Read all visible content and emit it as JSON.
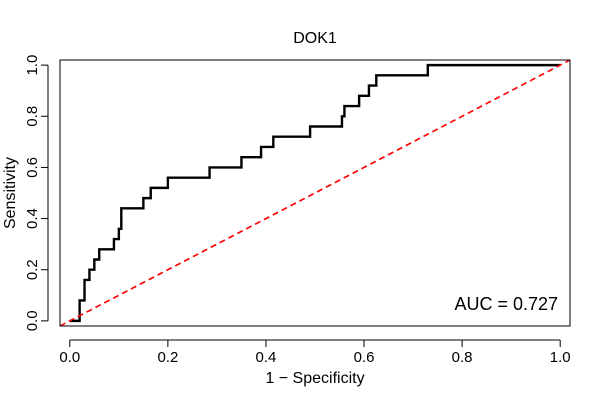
{
  "chart_data": {
    "type": "line",
    "title": "DOK1",
    "xlabel": "1 − Specificity",
    "ylabel": "Sensitivity",
    "xlim": [
      -0.02,
      1.02
    ],
    "ylim": [
      -0.02,
      1.02
    ],
    "x_ticks": [
      0.0,
      0.2,
      0.4,
      0.6,
      0.8,
      1.0
    ],
    "x_tick_labels": [
      "0.0",
      "0.2",
      "0.4",
      "0.6",
      "0.8",
      "1.0"
    ],
    "y_ticks": [
      0.0,
      0.2,
      0.4,
      0.6,
      0.8,
      1.0
    ],
    "y_tick_labels": [
      "0.0",
      "0.2",
      "0.4",
      "0.6",
      "0.8",
      "1.0"
    ],
    "annotation": "AUC = 0.727",
    "annotation_position": "bottom-right",
    "grid": false,
    "series": [
      {
        "color": "#000000",
        "style": "step",
        "points": [
          [
            0.0,
            0.0
          ],
          [
            0.02,
            0.0
          ],
          [
            0.02,
            0.04
          ],
          [
            0.02,
            0.08
          ],
          [
            0.03,
            0.08
          ],
          [
            0.03,
            0.12
          ],
          [
            0.03,
            0.16
          ],
          [
            0.04,
            0.16
          ],
          [
            0.04,
            0.2
          ],
          [
            0.05,
            0.2
          ],
          [
            0.05,
            0.24
          ],
          [
            0.06,
            0.24
          ],
          [
            0.06,
            0.28
          ],
          [
            0.08,
            0.28
          ],
          [
            0.09,
            0.28
          ],
          [
            0.09,
            0.32
          ],
          [
            0.1,
            0.32
          ],
          [
            0.1,
            0.36
          ],
          [
            0.105,
            0.36
          ],
          [
            0.105,
            0.44
          ],
          [
            0.15,
            0.44
          ],
          [
            0.15,
            0.48
          ],
          [
            0.165,
            0.48
          ],
          [
            0.165,
            0.52
          ],
          [
            0.2,
            0.52
          ],
          [
            0.2,
            0.56
          ],
          [
            0.285,
            0.56
          ],
          [
            0.285,
            0.6
          ],
          [
            0.35,
            0.6
          ],
          [
            0.35,
            0.64
          ],
          [
            0.39,
            0.64
          ],
          [
            0.39,
            0.68
          ],
          [
            0.415,
            0.68
          ],
          [
            0.415,
            0.72
          ],
          [
            0.49,
            0.72
          ],
          [
            0.49,
            0.76
          ],
          [
            0.555,
            0.76
          ],
          [
            0.555,
            0.8
          ],
          [
            0.56,
            0.8
          ],
          [
            0.56,
            0.84
          ],
          [
            0.59,
            0.84
          ],
          [
            0.59,
            0.88
          ],
          [
            0.61,
            0.88
          ],
          [
            0.61,
            0.92
          ],
          [
            0.625,
            0.92
          ],
          [
            0.625,
            0.96
          ],
          [
            0.73,
            0.96
          ],
          [
            0.73,
            1.0
          ],
          [
            1.0,
            1.0
          ]
        ]
      },
      {
        "color": "#ff0000",
        "style": "dashed",
        "points": [
          [
            -0.02,
            -0.02
          ],
          [
            1.02,
            1.02
          ]
        ]
      }
    ]
  }
}
